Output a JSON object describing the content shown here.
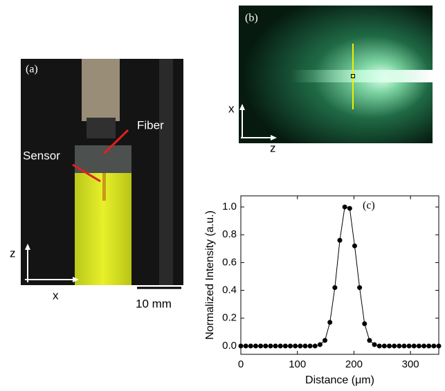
{
  "panel_a": {
    "label": "(a)",
    "fiber": "Fiber",
    "sensor": "Sensor",
    "axis_z": "z",
    "axis_x": "x",
    "scale_bar": "10 mm"
  },
  "panel_b": {
    "label": "(b)",
    "axis_x": "x",
    "axis_z": "z"
  },
  "chart_data": {
    "type": "line",
    "panel_label": "(c)",
    "x_label": "Distance (μm)",
    "y_label": "Normalized Intensity (a.u.)",
    "x": [
      0,
      8.75,
      17.5,
      26.25,
      35,
      43.75,
      52.5,
      61.25,
      70,
      78.75,
      87.5,
      96.25,
      105,
      113.75,
      122.5,
      131.25,
      140,
      148.75,
      157.5,
      166.25,
      175,
      183.75,
      192.5,
      201.25,
      210,
      218.75,
      227.5,
      236.25,
      245,
      253.75,
      262.5,
      271.25,
      280,
      288.75,
      297.5,
      306.25,
      315,
      323.75,
      332.5,
      341.25,
      350
    ],
    "series": [
      {
        "color": "#000000",
        "values": [
          0,
          0,
          0,
          0,
          0,
          0,
          0,
          0,
          0,
          0,
          0,
          0,
          0,
          0,
          0,
          0,
          0.01,
          0.04,
          0.17,
          0.42,
          0.76,
          1.0,
          0.99,
          0.72,
          0.42,
          0.16,
          0.04,
          0.01,
          0,
          0,
          0,
          0,
          0,
          0,
          0,
          0,
          0,
          0,
          0,
          0,
          0
        ]
      }
    ],
    "xlim": [
      0,
      350
    ],
    "xticks": [
      0,
      100,
      200,
      300
    ],
    "ylim": [
      -0.06,
      1.08
    ],
    "yticks": [
      {
        "value": 0,
        "label": "0.0"
      },
      {
        "value": 0.2,
        "label": "0.2"
      },
      {
        "value": 0.4,
        "label": "0.4"
      },
      {
        "value": 0.6,
        "label": "0.6"
      },
      {
        "value": 0.8,
        "label": "0.8"
      },
      {
        "value": 1,
        "label": "1.0"
      }
    ]
  }
}
